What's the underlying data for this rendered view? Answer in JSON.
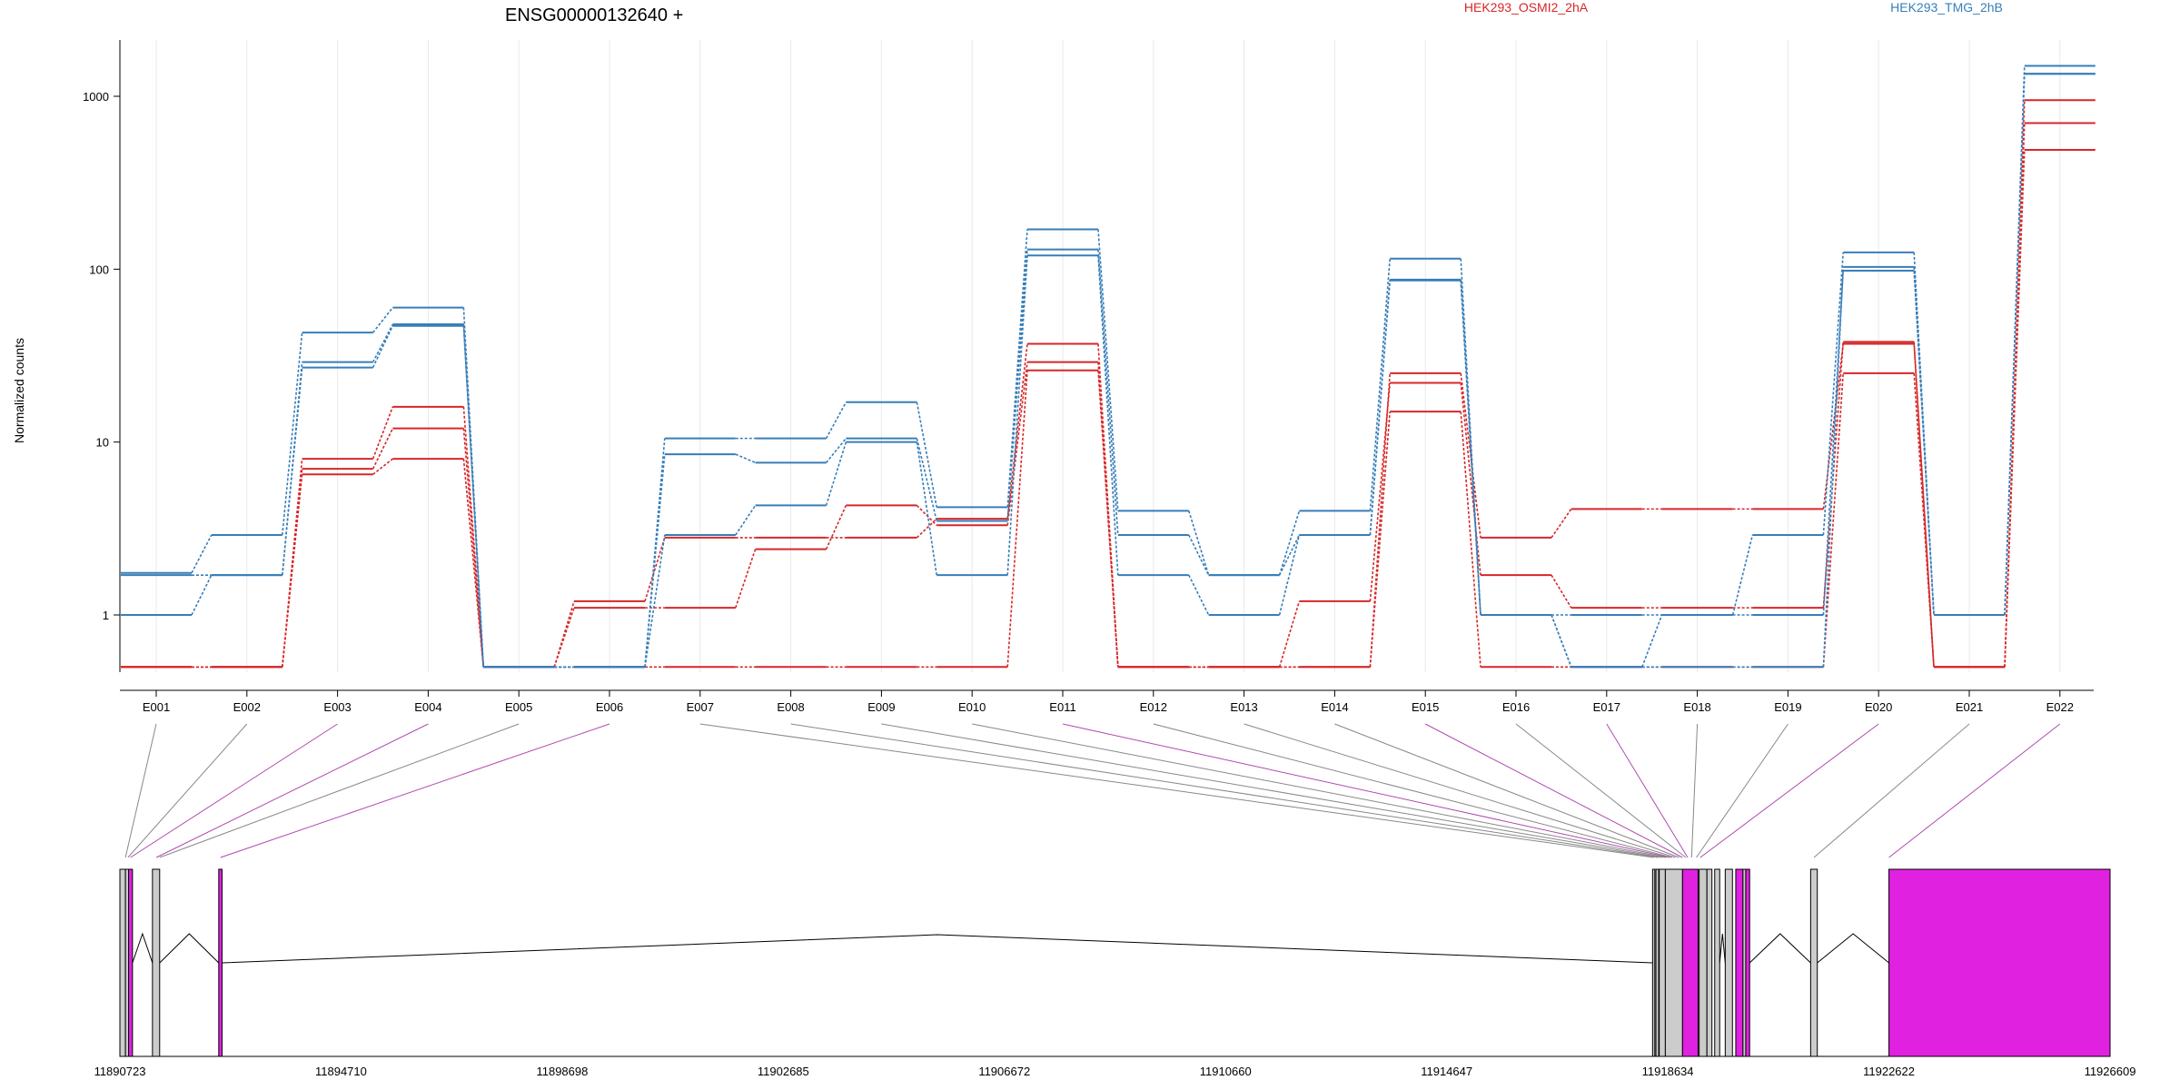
{
  "chart_data": {
    "type": "line",
    "title": "ENSG00000132640 +",
    "ylabel": "Normalized counts",
    "xlabel": "",
    "yscale": "log",
    "ylim": [
      0.5,
      2000
    ],
    "yticks": [
      1,
      10,
      100,
      1000
    ],
    "ytick_labels": [
      "1",
      "10",
      "100",
      "1000"
    ],
    "grid": "vertical-light",
    "legend_position": "top",
    "colors": {
      "HEK293_OSMI2_2hA": "#d62728",
      "HEK293_TMG_2hB": "#377eb8",
      "sig": "#e022e0",
      "nonsig": "#cccccc"
    },
    "categories": [
      "E001",
      "E002",
      "E003",
      "E004",
      "E005",
      "E006",
      "E007",
      "E008",
      "E009",
      "E010",
      "E011",
      "E012",
      "E013",
      "E014",
      "E015",
      "E016",
      "E017",
      "E018",
      "E019",
      "E020",
      "E021",
      "E022"
    ],
    "legend": [
      "HEK293_OSMI2_2hA",
      "HEK293_TMG_2hB"
    ],
    "series": [
      {
        "name": "HEK293_OSMI2_2hA",
        "values": [
          0.5,
          0.5,
          8,
          16,
          0.5,
          1.2,
          2.8,
          2.8,
          2.8,
          3.6,
          37,
          0.5,
          0.5,
          0.5,
          25,
          2.8,
          4.1,
          4.1,
          4.1,
          37,
          0.5,
          950
        ]
      },
      {
        "name": "HEK293_OSMI2_2hA",
        "values": [
          0.5,
          0.5,
          7,
          12,
          0.5,
          1.1,
          1.1,
          2.4,
          4.3,
          3.3,
          29,
          0.5,
          0.5,
          1.2,
          22,
          1.7,
          1.1,
          1.1,
          1.1,
          38,
          0.5,
          700
        ]
      },
      {
        "name": "HEK293_OSMI2_2hA",
        "values": [
          0.5,
          0.5,
          6.5,
          8,
          0.5,
          0.5,
          0.5,
          0.5,
          0.5,
          0.5,
          26,
          0.5,
          0.5,
          0.5,
          15,
          0.5,
          0.5,
          0.5,
          0.5,
          25,
          0.5,
          490
        ]
      },
      {
        "name": "HEK293_TMG_2hB",
        "values": [
          1.75,
          2.9,
          43,
          60,
          0.5,
          0.5,
          10.5,
          10.5,
          17,
          4.2,
          170,
          4,
          1.7,
          4,
          115,
          1.0,
          1.0,
          1.0,
          2.9,
          125,
          1.0,
          1500
        ]
      },
      {
        "name": "HEK293_TMG_2hB",
        "values": [
          1.7,
          1.7,
          29,
          48,
          0.5,
          0.5,
          8.5,
          7.6,
          10.5,
          3.5,
          130,
          2.9,
          1.7,
          2.9,
          87,
          1.0,
          0.5,
          0.5,
          0.5,
          103,
          1.0,
          1350
        ]
      },
      {
        "name": "HEK293_TMG_2hB",
        "values": [
          1.0,
          1.7,
          27,
          47,
          0.5,
          0.5,
          2.9,
          4.3,
          10,
          1.7,
          120,
          1.7,
          1.0,
          2.9,
          86,
          1.0,
          0.5,
          1.0,
          1.0,
          98,
          1.0,
          1350
        ]
      }
    ],
    "exon_significant": [
      false,
      false,
      true,
      true,
      false,
      true,
      false,
      false,
      false,
      false,
      true,
      false,
      false,
      false,
      true,
      false,
      true,
      false,
      false,
      true,
      false,
      true
    ],
    "genomic_range": [
      11890723,
      11926609
    ],
    "genomic_ticks": [
      11890723,
      11894710,
      11898698,
      11902685,
      11906672,
      11910660,
      11914647,
      11918634,
      11922622,
      11926609
    ],
    "exon_genomic_coords": [
      11890823,
      11890868,
      11890913,
      11891380,
      11891440,
      11892538,
      11918380,
      11918460,
      11918537,
      11918600,
      11918665,
      11918710,
      11918773,
      11918837,
      11918898,
      11918958,
      11918993,
      11919063,
      11919150,
      11919220,
      11921270,
      11922622
    ],
    "gene_model_blocks": [
      {
        "start": 11890723,
        "end": 11890823,
        "kind": "nonsig"
      },
      {
        "start": 11890823,
        "end": 11890880,
        "kind": "nonsig"
      },
      {
        "start": 11890880,
        "end": 11890950,
        "kind": "sig"
      },
      {
        "start": 11891310,
        "end": 11891440,
        "kind": "nonsig"
      },
      {
        "start": 11892505,
        "end": 11892565,
        "kind": "sig"
      },
      {
        "start": 11918360,
        "end": 11918400,
        "kind": "nonsig"
      },
      {
        "start": 11918420,
        "end": 11918470,
        "kind": "nonsig"
      },
      {
        "start": 11918480,
        "end": 11918590,
        "kind": "nonsig"
      },
      {
        "start": 11918590,
        "end": 11918900,
        "kind": "nonsig"
      },
      {
        "start": 11918900,
        "end": 11919180,
        "kind": "sig"
      },
      {
        "start": 11919200,
        "end": 11919340,
        "kind": "nonsig"
      },
      {
        "start": 11919340,
        "end": 11919430,
        "kind": "nonsig"
      },
      {
        "start": 11919480,
        "end": 11919570,
        "kind": "nonsig"
      },
      {
        "start": 11919670,
        "end": 11919800,
        "kind": "nonsig"
      },
      {
        "start": 11919860,
        "end": 11919990,
        "kind": "sig"
      },
      {
        "start": 11919990,
        "end": 11920040,
        "kind": "nonsig"
      },
      {
        "start": 11920040,
        "end": 11920110,
        "kind": "sig"
      },
      {
        "start": 11921210,
        "end": 11921330,
        "kind": "nonsig"
      },
      {
        "start": 11922622,
        "end": 11926609,
        "kind": "sig"
      }
    ]
  }
}
